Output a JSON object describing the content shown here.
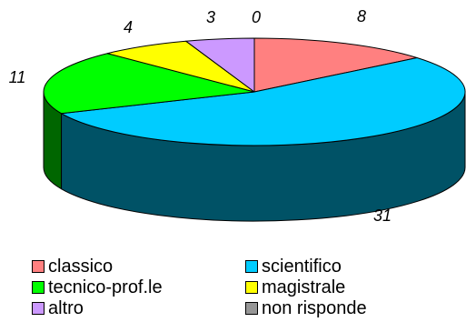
{
  "chart_data": {
    "type": "pie",
    "style": "3d",
    "slices": [
      {
        "label": "classico",
        "value": 8,
        "color": "#FF8080"
      },
      {
        "label": "scientifico",
        "value": 31,
        "color": "#00CCFF"
      },
      {
        "label": "tecnico-prof.le",
        "value": 11,
        "color": "#00FF00"
      },
      {
        "label": "magistrale",
        "value": 4,
        "color": "#FFFF00"
      },
      {
        "label": "altro",
        "value": 3,
        "color": "#CC99FF"
      },
      {
        "label": "non risponde",
        "value": 0,
        "color": "#969696"
      }
    ],
    "legend_position": "bottom",
    "data_labels_shown": true
  }
}
